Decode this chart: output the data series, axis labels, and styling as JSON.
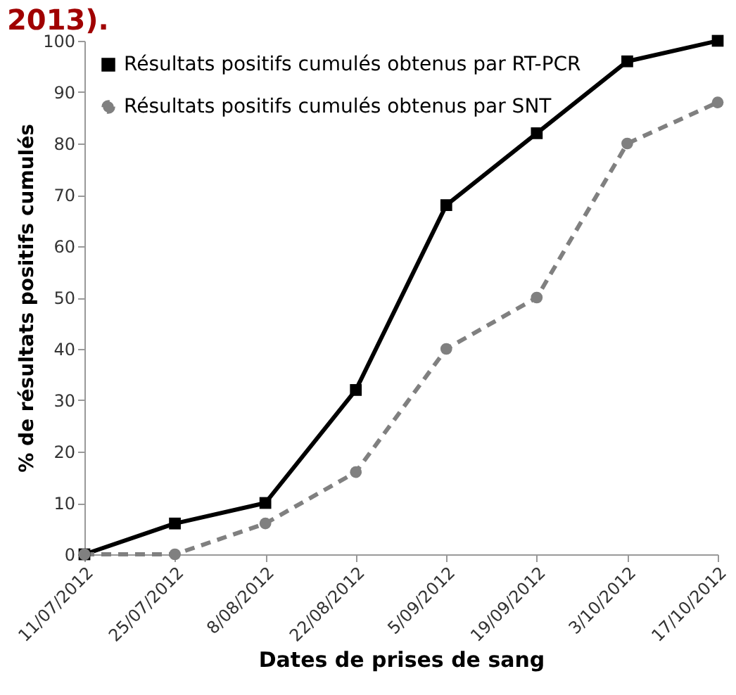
{
  "chart_data": {
    "type": "line",
    "title": "2013).",
    "xlabel": "Dates de prises de sang",
    "ylabel": "% de résultats positifs cumulés",
    "categories": [
      "11/07/2012",
      "25/07/2012",
      "8/08/2012",
      "22/08/2012",
      "5/09/2012",
      "19/09/2012",
      "3/10/2012",
      "17/10/2012"
    ],
    "series": [
      {
        "name": "Résultats positifs cumulés obtenus par RT-PCR",
        "color": "#000000",
        "marker": "square",
        "line_style": "solid",
        "values": [
          0,
          6,
          10,
          32,
          68,
          82,
          96,
          100
        ]
      },
      {
        "name": "Résultats positifs cumulés obtenus par SNT",
        "color": "#808080",
        "marker": "circle",
        "line_style": "dashed",
        "values": [
          0,
          0,
          6,
          16,
          40,
          50,
          80,
          88
        ]
      }
    ],
    "ylim": [
      0,
      100
    ],
    "yticks": [
      0,
      10,
      20,
      30,
      40,
      50,
      60,
      70,
      80,
      90,
      100
    ],
    "grid": false,
    "legend": "top left"
  }
}
